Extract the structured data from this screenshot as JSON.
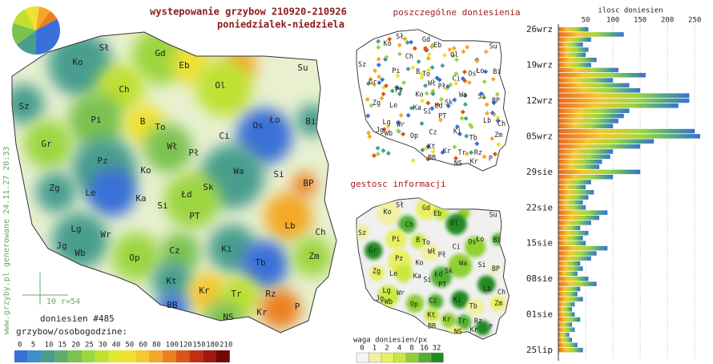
{
  "header": {
    "title": "wystepowanie grzybow 210920-210926",
    "subtitle": "poniedzialek-niedziela"
  },
  "big_map": {
    "labels": [
      "Sł",
      "Gd",
      "Eb",
      "Su",
      "Ko",
      "Ch",
      "Ol",
      "Sz",
      "Pi",
      "B",
      "To",
      "Ci",
      "Ło",
      "Os",
      "Bi",
      "Gr",
      "Wł",
      "Pł",
      "Pz",
      "Ko",
      "Wa",
      "Si",
      "Zg",
      "Le",
      "Ka",
      "Łd",
      "Sk",
      "BP",
      "Lb",
      "PT",
      "Si",
      "Lg",
      "Wr",
      "Ch",
      "Jg",
      "Wb",
      "Op",
      "Cz",
      "Ki",
      "Zm",
      "Tb",
      "Kt",
      "Kr",
      "Tr",
      "Rz",
      "BB",
      "NS",
      "Kr",
      "P"
    ]
  },
  "points_map": {
    "title": "poszczególne doniesienia"
  },
  "density_map": {
    "title": "gestosc informacji",
    "legend_title": "waga doniesien/px",
    "legend_labels": [
      0,
      1,
      2,
      4,
      8,
      16,
      32
    ],
    "legend_colors": [
      "#f4f4f4",
      "#f0f0a0",
      "#e8f060",
      "#c8e840",
      "#90d030",
      "#50b030",
      "#208a20"
    ]
  },
  "left_legend": {
    "count_text": "doniesien #485",
    "title": "grzybow/osobogodzine:",
    "labels": [
      0,
      5,
      10,
      15,
      20,
      25,
      30,
      40,
      50,
      60,
      80,
      100,
      120,
      150,
      180,
      210
    ],
    "colors": [
      "#3a6fd8",
      "#3d8fc8",
      "#4a9e8f",
      "#5fae6f",
      "#7cc24f",
      "#9cd63f",
      "#c0e030",
      "#e0e830",
      "#f0e030",
      "#f4c830",
      "#f4a828",
      "#ec8020",
      "#d85818",
      "#c03010",
      "#a01810",
      "#700808"
    ]
  },
  "watermark": "www.grzyby.pl generowane 24.11.27 20:33",
  "scale_note": "10 r=54",
  "chart_data": {
    "type": "bar",
    "orientation": "horizontal",
    "x_label": "ilosc doniesien",
    "xlim": [
      0,
      260
    ],
    "xticks": [
      50,
      100,
      150,
      200,
      250
    ],
    "categories": [
      "26wrz",
      null,
      null,
      null,
      null,
      null,
      null,
      "19wrz",
      null,
      null,
      null,
      null,
      null,
      null,
      "12wrz",
      null,
      null,
      null,
      null,
      null,
      null,
      "05wrz",
      null,
      null,
      null,
      null,
      null,
      null,
      "29sie",
      null,
      null,
      null,
      null,
      null,
      null,
      "22sie",
      null,
      null,
      null,
      null,
      null,
      null,
      "15sie",
      null,
      null,
      null,
      null,
      null,
      null,
      "08sie",
      null,
      null,
      null,
      null,
      null,
      null,
      "01sie",
      null,
      null,
      null,
      null,
      null,
      null,
      "25lip"
    ],
    "values": [
      55,
      120,
      60,
      45,
      55,
      50,
      70,
      60,
      110,
      160,
      100,
      130,
      150,
      240,
      240,
      220,
      130,
      120,
      110,
      100,
      250,
      260,
      175,
      150,
      100,
      95,
      80,
      75,
      150,
      100,
      60,
      50,
      65,
      55,
      45,
      50,
      90,
      75,
      60,
      40,
      55,
      45,
      50,
      90,
      70,
      60,
      40,
      45,
      35,
      55,
      70,
      40,
      35,
      45,
      30,
      25,
      30,
      40,
      25,
      30,
      20,
      25,
      35,
      45
    ]
  }
}
